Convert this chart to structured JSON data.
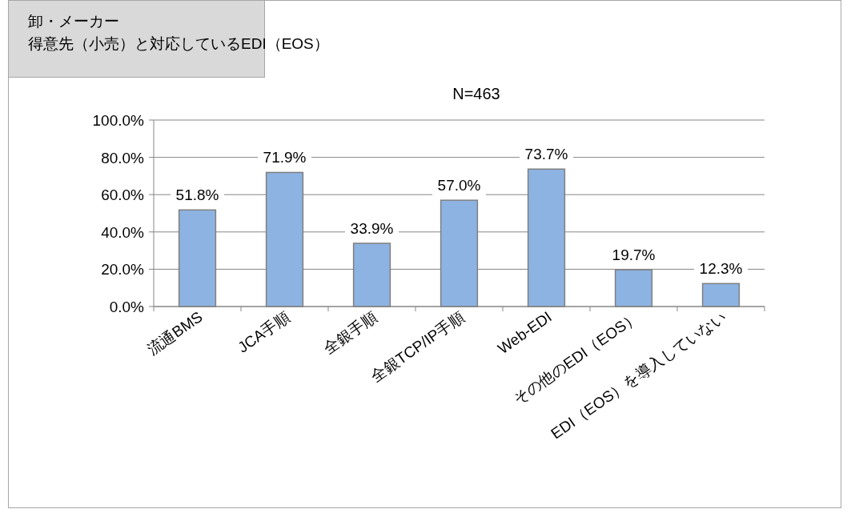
{
  "chart_data": {
    "type": "bar",
    "title": "卸・メーカー",
    "subtitle": "得意先（小売）と対応しているEDI（EOS）",
    "annotations": [
      "N=463"
    ],
    "categories": [
      "流通BMS",
      "JCA手順",
      "全銀手順",
      "全銀TCP/IP手順",
      "Web-EDI",
      "その他のEDI（EOS）",
      "EDI（EOS）を導入していない"
    ],
    "values": [
      51.8,
      71.9,
      33.9,
      57.0,
      73.7,
      19.7,
      12.3
    ],
    "value_labels": [
      "51.8%",
      "71.9%",
      "33.9%",
      "57.0%",
      "73.7%",
      "19.7%",
      "12.3%"
    ],
    "color": "#8db3e2",
    "ylim": [
      0,
      100
    ],
    "yticks": [
      {
        "value": 0,
        "label": "0.0%"
      },
      {
        "value": 20,
        "label": "20.0%"
      },
      {
        "value": 40,
        "label": "40.0%"
      },
      {
        "value": 60,
        "label": "60.0%"
      },
      {
        "value": 80,
        "label": "80.0%"
      },
      {
        "value": 100,
        "label": "100.0%"
      }
    ],
    "grid": "y"
  }
}
